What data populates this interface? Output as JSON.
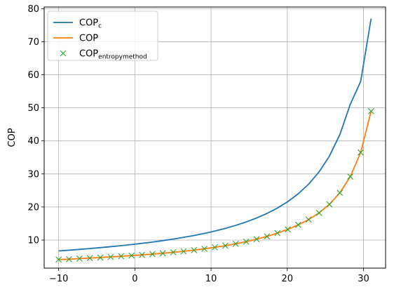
{
  "chart_data": {
    "type": "line",
    "title": "",
    "xlabel": "",
    "ylabel": "COP",
    "xlim": [
      -11.9,
      32.9
    ],
    "ylim": [
      1.5,
      80.5
    ],
    "xticks": [
      -10,
      0,
      10,
      20,
      30
    ],
    "yticks": [
      10,
      20,
      30,
      40,
      50,
      60,
      70,
      80
    ],
    "grid": true,
    "legend_position": "top-left",
    "series": [
      {
        "name": "COP_c",
        "legend_main": "COP",
        "legend_sub": "c",
        "style": "line",
        "color": "#1f77b4",
        "x": [
          -10,
          -8.633,
          -7.267,
          -5.9,
          -4.533,
          -3.167,
          -1.8,
          -0.433,
          0.933,
          2.3,
          3.667,
          5.033,
          6.4,
          7.767,
          9.133,
          10.5,
          11.867,
          13.233,
          14.6,
          15.967,
          17.333,
          18.7,
          20.067,
          21.433,
          22.8,
          24.167,
          25.533,
          26.9,
          28.267,
          29.633,
          31
        ],
        "y": [
          6.7,
          6.93,
          7.17,
          7.43,
          7.7,
          7.99,
          8.3,
          8.64,
          9.0,
          9.39,
          9.82,
          10.29,
          10.81,
          11.38,
          12.02,
          12.73,
          13.53,
          14.44,
          15.47,
          16.66,
          18.04,
          19.67,
          21.62,
          23.98,
          26.9,
          30.6,
          35.41,
          41.89,
          51.1,
          58.0,
          77.0
        ]
      },
      {
        "name": "COP",
        "legend_main": "COP",
        "legend_sub": "",
        "style": "line",
        "color": "#ff7f0e",
        "x": [
          -10,
          -8.633,
          -7.267,
          -5.9,
          -4.533,
          -3.167,
          -1.8,
          -0.433,
          0.933,
          2.3,
          3.667,
          5.033,
          6.4,
          7.767,
          9.133,
          10.5,
          11.867,
          13.233,
          14.6,
          15.967,
          17.333,
          18.7,
          20.067,
          21.433,
          22.8,
          24.167,
          25.533,
          26.9,
          28.267,
          29.633,
          31
        ],
        "y": [
          4.1,
          4.2,
          4.4,
          4.55,
          4.7,
          4.9,
          5.1,
          5.3,
          5.5,
          5.75,
          6.0,
          6.3,
          6.6,
          6.95,
          7.35,
          7.8,
          8.3,
          8.85,
          9.5,
          10.25,
          11.1,
          12.1,
          13.2,
          14.6,
          16.2,
          18.2,
          20.8,
          24.3,
          29.2,
          36.5,
          49.0
        ]
      },
      {
        "name": "COP_entropymethod",
        "legend_main": "COP",
        "legend_sub": "entropymethod",
        "style": "marker-x",
        "color": "#2ca02c",
        "x": [
          -10,
          -8.633,
          -7.267,
          -5.9,
          -4.533,
          -3.167,
          -1.8,
          -0.433,
          0.933,
          2.3,
          3.667,
          5.033,
          6.4,
          7.767,
          9.133,
          10.5,
          11.867,
          13.233,
          14.6,
          15.967,
          17.333,
          18.7,
          20.067,
          21.433,
          22.8,
          24.167,
          25.533,
          26.9,
          28.267,
          29.633,
          31
        ],
        "y": [
          4.1,
          4.2,
          4.4,
          4.55,
          4.7,
          4.9,
          5.1,
          5.3,
          5.5,
          5.75,
          6.0,
          6.3,
          6.6,
          6.95,
          7.35,
          7.8,
          8.3,
          8.85,
          9.5,
          10.25,
          11.1,
          12.1,
          13.2,
          14.6,
          16.2,
          18.2,
          20.8,
          24.3,
          29.2,
          36.5,
          49.0
        ]
      }
    ]
  }
}
